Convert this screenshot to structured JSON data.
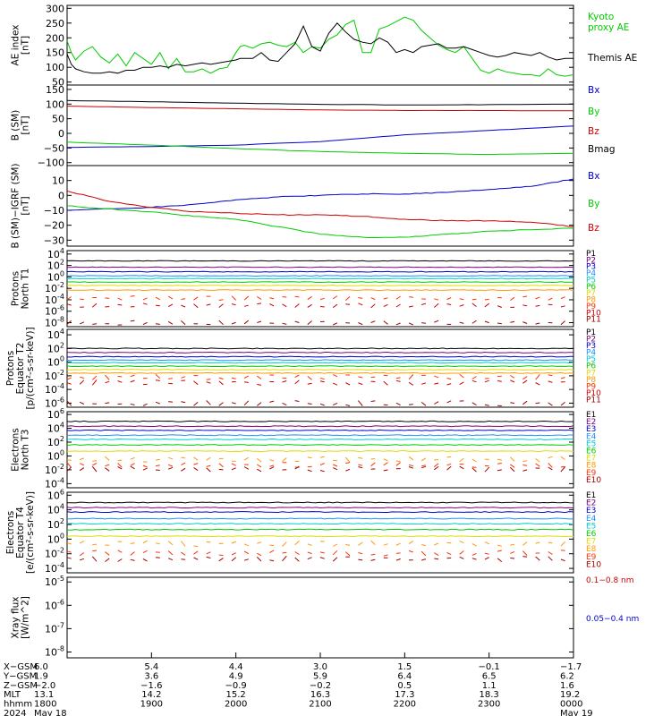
{
  "chart_data": [
    {
      "type": "line",
      "panel": "ae",
      "ylabel": [
        "AE index",
        "[nT]"
      ],
      "yticks": [
        50,
        100,
        150,
        200,
        250,
        300
      ],
      "ylim": [
        40,
        310
      ],
      "series": [
        {
          "name": "Kyoto proxy AE",
          "color": "#00cc00",
          "x": [
            0,
            0.05,
            0.1,
            0.2,
            0.3,
            0.4,
            0.5,
            0.6,
            0.7,
            0.8,
            0.9,
            1.0,
            1.1,
            1.2,
            1.3,
            1.4,
            1.5,
            1.6,
            1.7,
            1.8,
            1.9,
            2.0,
            2.05,
            2.1,
            2.2,
            2.3,
            2.4,
            2.5,
            2.6,
            2.7,
            2.8,
            2.9,
            3.0,
            3.1,
            3.2,
            3.3,
            3.4,
            3.5,
            3.6,
            3.7,
            3.8,
            3.9,
            4.0,
            4.1,
            4.2,
            4.3,
            4.4,
            4.5,
            4.6,
            4.7,
            4.8,
            4.9,
            5.0,
            5.1,
            5.2,
            5.3,
            5.4,
            5.5,
            5.6,
            5.7,
            5.8,
            5.9,
            6.0
          ],
          "values": [
            190,
            150,
            125,
            155,
            170,
            135,
            115,
            145,
            105,
            150,
            130,
            110,
            150,
            95,
            130,
            85,
            85,
            95,
            80,
            95,
            100,
            150,
            170,
            175,
            165,
            180,
            185,
            175,
            170,
            185,
            150,
            170,
            165,
            195,
            210,
            245,
            260,
            150,
            150,
            230,
            240,
            255,
            270,
            260,
            225,
            200,
            175,
            160,
            150,
            170,
            130,
            90,
            80,
            95,
            85,
            80,
            75,
            75,
            70,
            95,
            75,
            70,
            75
          ]
        },
        {
          "name": "Themis AE",
          "color": "#000000",
          "x": [
            0,
            0.05,
            0.1,
            0.2,
            0.3,
            0.4,
            0.5,
            0.6,
            0.7,
            0.8,
            0.9,
            1.0,
            1.1,
            1.2,
            1.3,
            1.4,
            1.5,
            1.6,
            1.7,
            1.8,
            1.9,
            2.0,
            2.05,
            2.1,
            2.2,
            2.3,
            2.4,
            2.5,
            2.6,
            2.7,
            2.8,
            2.9,
            3.0,
            3.1,
            3.2,
            3.3,
            3.4,
            3.5,
            3.6,
            3.7,
            3.8,
            3.9,
            4.0,
            4.1,
            4.2,
            4.3,
            4.4,
            4.5,
            4.6,
            4.7,
            4.8,
            4.9,
            5.0,
            5.1,
            5.2,
            5.3,
            5.4,
            5.5,
            5.6,
            5.7,
            5.8,
            5.9,
            6.0
          ],
          "values": [
            145,
            110,
            95,
            85,
            80,
            80,
            85,
            80,
            90,
            90,
            100,
            100,
            105,
            100,
            110,
            105,
            110,
            115,
            110,
            115,
            120,
            125,
            130,
            130,
            130,
            150,
            125,
            120,
            150,
            180,
            240,
            170,
            155,
            215,
            250,
            220,
            195,
            185,
            180,
            200,
            185,
            150,
            160,
            150,
            170,
            175,
            180,
            165,
            165,
            170,
            160,
            150,
            140,
            135,
            140,
            150,
            145,
            140,
            150,
            135,
            125,
            130,
            130
          ]
        }
      ]
    },
    {
      "type": "line",
      "panel": "bsm",
      "ylabel": [
        "B (SM)",
        "[nT]"
      ],
      "yticks": [
        -100,
        -50,
        0,
        50,
        100,
        150
      ],
      "ylim": [
        -110,
        165
      ],
      "series": [
        {
          "name": "Bx",
          "color": "#0000cc",
          "x": [
            0,
            1,
            2,
            3,
            4,
            5,
            6
          ],
          "values": [
            -48,
            -45,
            -40,
            -28,
            -5,
            10,
            25
          ]
        },
        {
          "name": "By",
          "color": "#00cc00",
          "x": [
            0,
            1,
            2,
            3,
            4,
            5,
            6
          ],
          "values": [
            -30,
            -40,
            -52,
            -62,
            -68,
            -72,
            -68
          ]
        },
        {
          "name": "Bz",
          "color": "#cc0000",
          "x": [
            0,
            1,
            2,
            3,
            4,
            5,
            6
          ],
          "values": [
            93,
            88,
            84,
            80,
            78,
            78,
            77
          ]
        },
        {
          "name": "Bmag",
          "color": "#000000",
          "x": [
            0,
            1,
            2,
            3,
            4,
            5,
            6
          ],
          "values": [
            112,
            108,
            103,
            99,
            97,
            98,
            100
          ]
        }
      ]
    },
    {
      "type": "line",
      "panel": "bdiff",
      "ylabel": [
        "B (SM)−IGRF (SM)",
        "[nT]"
      ],
      "yticks": [
        -30,
        -20,
        -10,
        0,
        10
      ],
      "ylim": [
        -34,
        20
      ],
      "series": [
        {
          "name": "Bx",
          "color": "#0000cc",
          "x": [
            0,
            0.5,
            1,
            1.5,
            2,
            2.5,
            3,
            3.5,
            4,
            4.5,
            5,
            5.5,
            6
          ],
          "values": [
            -10,
            -9,
            -8,
            -6,
            -3,
            -1,
            0,
            1,
            1,
            2,
            4,
            6,
            11
          ]
        },
        {
          "name": "By",
          "color": "#00cc00",
          "x": [
            0,
            0.5,
            1,
            1.5,
            2,
            2.5,
            3,
            3.5,
            4,
            4.5,
            5,
            5.5,
            6
          ],
          "values": [
            -7,
            -9,
            -11,
            -14,
            -16,
            -21,
            -26,
            -28,
            -28,
            -26,
            -24,
            -23,
            -22
          ]
        },
        {
          "name": "Bz",
          "color": "#cc0000",
          "x": [
            0,
            0.5,
            1,
            1.5,
            2,
            2.5,
            3,
            3.5,
            4,
            4.5,
            5,
            5.5,
            6
          ],
          "values": [
            3,
            -4,
            -8,
            -11,
            -12,
            -13,
            -13,
            -14,
            -16,
            -17,
            -17,
            -18,
            -21
          ]
        }
      ]
    },
    {
      "type": "line",
      "panel": "pn",
      "log": true,
      "ylabel": [
        "Protons",
        "North T1"
      ],
      "ytick_exponents": [
        -8,
        -6,
        -4,
        -2,
        0,
        2,
        4
      ],
      "ylim_exp": [
        -8.7,
        4.6
      ],
      "series": [
        {
          "name": "P1",
          "color": "#000000",
          "level": 2.8
        },
        {
          "name": "P2",
          "color": "#800080",
          "level": 1.7
        },
        {
          "name": "P3",
          "color": "#0000cc",
          "level": 0.9
        },
        {
          "name": "P4",
          "color": "#1e90ff",
          "level": 0.2
        },
        {
          "name": "P5",
          "color": "#00cccc",
          "level": -0.3
        },
        {
          "name": "P6",
          "color": "#00cc00",
          "level": -0.9
        },
        {
          "name": "P7",
          "color": "#dddd00",
          "level": -1.5
        },
        {
          "name": "P8",
          "color": "#ff9900",
          "level": -2.3
        },
        {
          "name": "P9",
          "color": "#ff3300",
          "level": -3.7
        },
        {
          "name": "P10",
          "color": "#cc0000",
          "level": -5.0
        },
        {
          "name": "P11",
          "color": "#a00000",
          "level": -8.0
        }
      ]
    },
    {
      "type": "line",
      "panel": "pe",
      "log": true,
      "ylabel": [
        "Protons",
        "Equator T2",
        "[p/(cm²-s-sr-keV)]"
      ],
      "ytick_exponents": [
        -6,
        -4,
        -2,
        0,
        2,
        4
      ],
      "ylim_exp": [
        -6.6,
        4.8
      ],
      "series": [
        {
          "name": "P1",
          "color": "#000000",
          "level": 2.0
        },
        {
          "name": "P2",
          "color": "#800080",
          "level": 1.4
        },
        {
          "name": "P3",
          "color": "#0000cc",
          "level": 0.8
        },
        {
          "name": "P4",
          "color": "#1e90ff",
          "level": 0.3
        },
        {
          "name": "P5",
          "color": "#00cccc",
          "level": -0.1
        },
        {
          "name": "P6",
          "color": "#00cc00",
          "level": -0.6
        },
        {
          "name": "P7",
          "color": "#dddd00",
          "level": -1.1
        },
        {
          "name": "P8",
          "color": "#ff9900",
          "level": -1.6
        },
        {
          "name": "P9",
          "color": "#ff3300",
          "level": -2.2
        },
        {
          "name": "P10",
          "color": "#cc0000",
          "level": -3.0
        },
        {
          "name": "P11",
          "color": "#a00000",
          "level": -6.0
        }
      ]
    },
    {
      "type": "line",
      "panel": "en",
      "log": true,
      "ylabel": [
        "Electrons",
        "North T3"
      ],
      "ytick_exponents": [
        -4,
        -2,
        0,
        2,
        4,
        6
      ],
      "ylim_exp": [
        -4.6,
        6.4
      ],
      "series": [
        {
          "name": "E1",
          "color": "#000000",
          "level": 5.0
        },
        {
          "name": "E2",
          "color": "#800080",
          "level": 4.3
        },
        {
          "name": "E3",
          "color": "#0000cc",
          "level": 3.7
        },
        {
          "name": "E4",
          "color": "#1e90ff",
          "level": 3.0
        },
        {
          "name": "E5",
          "color": "#00cccc",
          "level": 2.4
        },
        {
          "name": "E6",
          "color": "#00cc00",
          "level": 1.6
        },
        {
          "name": "E7",
          "color": "#dddd00",
          "level": 0.7
        },
        {
          "name": "E8",
          "color": "#ff9900",
          "level": -0.5
        },
        {
          "name": "E9",
          "color": "#ff3300",
          "level": -1.3
        },
        {
          "name": "E10",
          "color": "#a00000",
          "level": -1.9
        }
      ]
    },
    {
      "type": "line",
      "panel": "ee",
      "log": true,
      "ylabel": [
        "Electrons",
        "Equator T4",
        "[e/(cm²-s-sr-keV)]"
      ],
      "ytick_exponents": [
        -4,
        -2,
        0,
        2,
        4,
        6
      ],
      "ylim_exp": [
        -4.6,
        6.4
      ],
      "series": [
        {
          "name": "E1",
          "color": "#000000",
          "level": 5.0
        },
        {
          "name": "E2",
          "color": "#800080",
          "level": 4.3
        },
        {
          "name": "E3",
          "color": "#0000cc",
          "level": 3.7
        },
        {
          "name": "E4",
          "color": "#1e90ff",
          "level": 2.8
        },
        {
          "name": "E5",
          "color": "#00cccc",
          "level": 2.1
        },
        {
          "name": "E6",
          "color": "#00cc00",
          "level": 1.3
        },
        {
          "name": "E7",
          "color": "#dddd00",
          "level": 0.4
        },
        {
          "name": "E8",
          "color": "#ff9900",
          "level": -0.6
        },
        {
          "name": "E9",
          "color": "#ff3300",
          "level": -1.9
        },
        {
          "name": "E10",
          "color": "#a00000",
          "level": -2.7
        }
      ]
    },
    {
      "type": "line",
      "panel": "xray",
      "log": true,
      "ylabel": [
        "Xray flux",
        "[W/m^2]"
      ],
      "ytick_exponents": [
        -8,
        -7,
        -6,
        -5
      ],
      "ylim_exp": [
        -8.25,
        -4.8
      ],
      "series": [
        {
          "name": "0.1−0.8 nm",
          "color": "#cc0000",
          "x": [
            0,
            0.5,
            1,
            1.5,
            1.8,
            1.9,
            2.0,
            2.1,
            2.5,
            2.8,
            2.9,
            3.0,
            3.1,
            3.5,
            4.0,
            4.5,
            5.0,
            5.5,
            6.0
          ],
          "values": [
            -5.85,
            -5.8,
            -5.75,
            -5.7,
            -5.65,
            -5.5,
            -5.75,
            -5.8,
            -5.75,
            -5.7,
            -5.45,
            -5.5,
            -5.8,
            -5.85,
            -5.85,
            -5.85,
            -5.85,
            -5.85,
            -5.8
          ]
        },
        {
          "name": "0.05−0.4 nm",
          "color": "#0000cc",
          "x": [
            0,
            0.3,
            0.6,
            1.0,
            1.4,
            1.6,
            1.75,
            1.8,
            1.85,
            1.9,
            2.0,
            2.1,
            2.5,
            2.75,
            2.8,
            2.85,
            2.9,
            2.95,
            3.0,
            3.5,
            3.9,
            4.0,
            4.1,
            4.5,
            5.0,
            5.5,
            5.8,
            6.0
          ],
          "values": [
            -8.05,
            -7.95,
            -7.95,
            -7.95,
            -7.9,
            -7.85,
            -7.7,
            -7.5,
            -7.85,
            -7.15,
            -7.6,
            -7.95,
            -7.95,
            -7.7,
            -7.2,
            -6.95,
            -7.3,
            -7.8,
            -7.95,
            -8.0,
            -8.0,
            -7.8,
            -7.95,
            -8.0,
            -7.95,
            -7.95,
            -7.85,
            -7.9
          ]
        }
      ]
    }
  ],
  "footer": {
    "row_labels": [
      "X−GSM",
      "Y−GSM",
      "Z−GSM",
      "MLT",
      "hhmm",
      "2024"
    ],
    "columns": [
      {
        "values": [
          "6.0",
          "1.9",
          "−2.0",
          "13.1",
          "1800",
          "May 18"
        ]
      },
      {
        "values": [
          "5.4",
          "3.6",
          "−1.6",
          "14.2",
          "1900",
          ""
        ]
      },
      {
        "values": [
          "4.4",
          "4.9",
          "−0.9",
          "15.2",
          "2000",
          ""
        ]
      },
      {
        "values": [
          "3.0",
          "5.9",
          "−0.2",
          "16.3",
          "2100",
          ""
        ]
      },
      {
        "values": [
          "1.5",
          "6.4",
          "0.5",
          "17.3",
          "2200",
          ""
        ]
      },
      {
        "values": [
          "−0.1",
          "6.5",
          "1.1",
          "18.3",
          "2300",
          ""
        ]
      },
      {
        "values": [
          "−1.7",
          "6.2",
          "1.6",
          "19.2",
          "0000",
          "May 19"
        ]
      }
    ]
  }
}
